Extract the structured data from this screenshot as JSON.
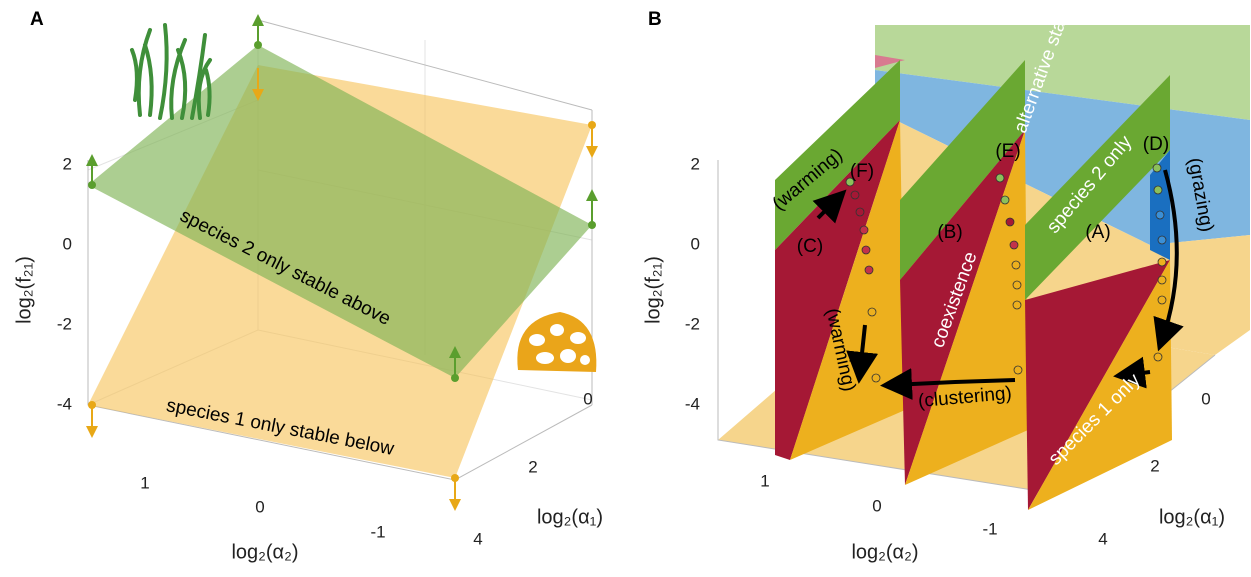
{
  "panels": [
    {
      "label": "A",
      "z_axis": {
        "label": "log₂(f₂₁)",
        "ticks": [
          "2",
          "0",
          "-2",
          "-4"
        ]
      },
      "x_axis": {
        "label": "log₂(α₂)",
        "ticks": [
          "1",
          "0",
          "-1"
        ]
      },
      "y_axis": {
        "label": "log₂(α₁)",
        "ticks": [
          "0",
          "2",
          "4"
        ]
      },
      "annotations": [
        "species 2 only stable above",
        "species 1 only stable below"
      ]
    },
    {
      "label": "B",
      "z_axis": {
        "label": "log₂(f₂₁)",
        "ticks": [
          "2",
          "0",
          "-2",
          "-4"
        ]
      },
      "x_axis": {
        "label": "log₂(α₂)",
        "ticks": [
          "1",
          "0",
          "-1"
        ]
      },
      "y_axis": {
        "label": "log₂(α₁)",
        "ticks": [
          "0",
          "2",
          "4"
        ]
      },
      "points": [
        "(F)",
        "(E)",
        "(D)",
        "(C)",
        "(B)",
        "(A)"
      ],
      "arrows": [
        "(warming)",
        "(warming)",
        "(grazing)",
        "(clustering)"
      ],
      "regions": [
        "coexistence",
        "alternative stable",
        "species 2 only",
        "species 1 only"
      ]
    }
  ]
}
